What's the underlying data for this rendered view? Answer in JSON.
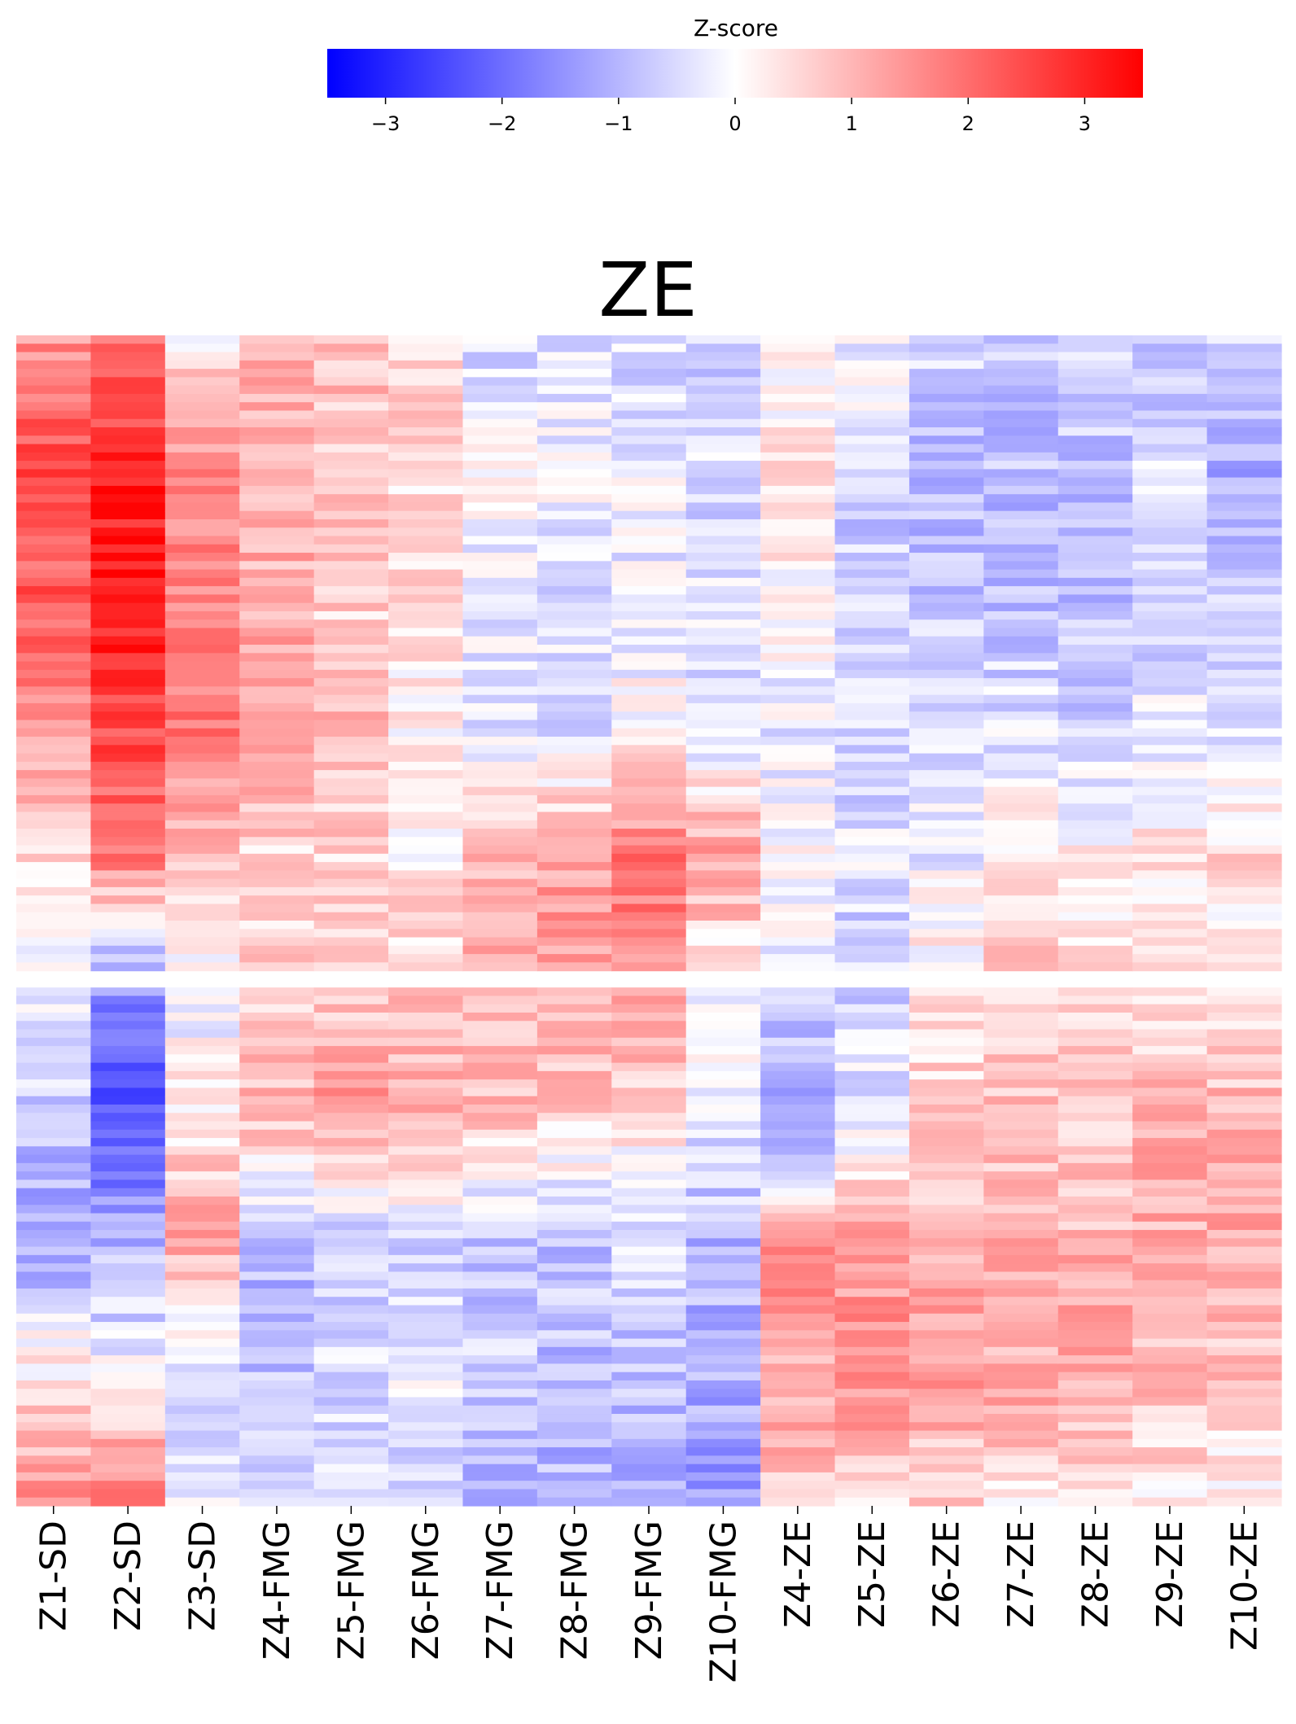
{
  "chart_data": {
    "type": "heatmap",
    "title": "ZE",
    "colorbar": {
      "label": "Z-score",
      "range": [
        -3.5,
        3.5
      ],
      "ticks": [
        -3,
        -2,
        -1,
        0,
        1,
        2,
        3
      ],
      "tick_labels": [
        "−3",
        "−2",
        "−1",
        "0",
        "1",
        "2",
        "3"
      ],
      "colors": {
        "low": "#0000ff",
        "mid": "#ffffff",
        "high": "#ff0000"
      }
    },
    "columns": [
      "Z1-SD",
      "Z2-SD",
      "Z3-SD",
      "Z4-FMG",
      "Z5-FMG",
      "Z6-FMG",
      "Z7-FMG",
      "Z8-FMG",
      "Z9-FMG",
      "Z10-FMG",
      "Z4-ZE",
      "Z5-ZE",
      "Z6-ZE",
      "Z7-ZE",
      "Z8-ZE",
      "Z9-ZE",
      "Z10-ZE"
    ],
    "row_count": 140,
    "blank_rows": [
      76,
      77
    ],
    "column_profiles": [
      [
        1.5,
        2.4,
        2.2,
        1.4,
        0.6,
        0.0,
        -0.8,
        -1.3,
        0.3,
        1.6
      ],
      [
        2.0,
        3.0,
        3.2,
        2.5,
        1.8,
        -1.5,
        -2.5,
        -1.0,
        -0.2,
        2.2
      ],
      [
        0.3,
        1.5,
        1.8,
        1.8,
        0.8,
        -0.3,
        0.3,
        1.2,
        -0.5,
        -0.2
      ],
      [
        1.0,
        1.2,
        1.0,
        1.5,
        0.5,
        0.7,
        1.0,
        -1.0,
        -0.8,
        -0.8
      ],
      [
        0.9,
        0.8,
        0.6,
        1.0,
        0.6,
        0.7,
        1.5,
        -0.8,
        -0.5,
        -0.5
      ],
      [
        0.6,
        0.5,
        0.4,
        0.2,
        0.3,
        0.7,
        1.2,
        -0.6,
        -0.2,
        -0.6
      ],
      [
        -0.5,
        0.0,
        -0.3,
        -0.5,
        1.0,
        1.1,
        0.8,
        -0.8,
        -0.6,
        -1.0
      ],
      [
        -0.4,
        -0.2,
        -0.4,
        -0.4,
        1.3,
        1.3,
        0.6,
        -0.8,
        -0.9,
        -1.0
      ],
      [
        -0.5,
        -0.3,
        -0.2,
        0.0,
        1.9,
        1.6,
        0.4,
        -0.5,
        -0.8,
        -1.3
      ],
      [
        -0.7,
        -0.5,
        -0.4,
        -0.6,
        1.4,
        0.0,
        -0.2,
        -1.0,
        -1.1,
        -1.4
      ],
      [
        -0.2,
        0.5,
        0.0,
        -0.3,
        0.0,
        -0.4,
        -1.5,
        1.5,
        1.2,
        0.8
      ],
      [
        -0.1,
        -0.6,
        -0.7,
        -0.6,
        -0.4,
        -0.7,
        -0.3,
        1.2,
        1.7,
        0.6
      ],
      [
        -0.6,
        -0.9,
        -0.8,
        -0.5,
        -0.3,
        0.3,
        0.7,
        1.0,
        1.3,
        0.6
      ],
      [
        -0.8,
        -0.9,
        -0.8,
        -0.4,
        0.3,
        0.7,
        0.9,
        1.0,
        1.2,
        0.4
      ],
      [
        -0.6,
        -0.8,
        -0.8,
        -0.6,
        0.2,
        0.5,
        0.8,
        1.0,
        1.3,
        0.3
      ],
      [
        -0.7,
        -0.5,
        -0.7,
        -0.3,
        0.4,
        0.3,
        1.0,
        1.1,
        0.9,
        0.3
      ],
      [
        -0.7,
        -1.2,
        -0.7,
        -0.3,
        0.5,
        0.1,
        1.1,
        1.2,
        0.8,
        0.2
      ]
    ]
  }
}
